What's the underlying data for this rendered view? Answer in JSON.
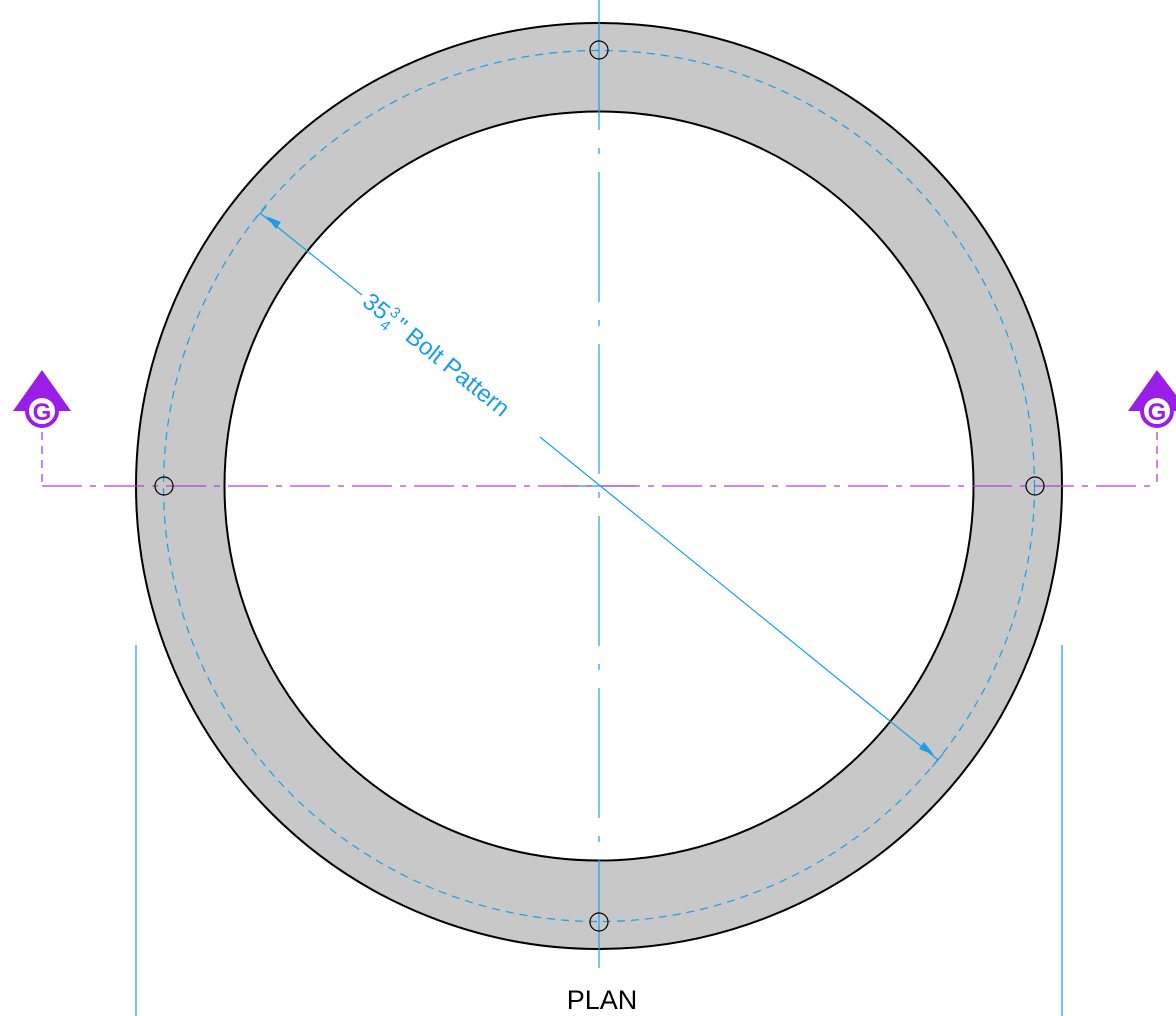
{
  "dimension": {
    "whole": "35",
    "numerator": "3",
    "denominator": "4",
    "label": "\" Bolt Pattern"
  },
  "section_markers": [
    {
      "label": "G"
    },
    {
      "label": "G"
    }
  ],
  "view_title": "PLAN"
}
